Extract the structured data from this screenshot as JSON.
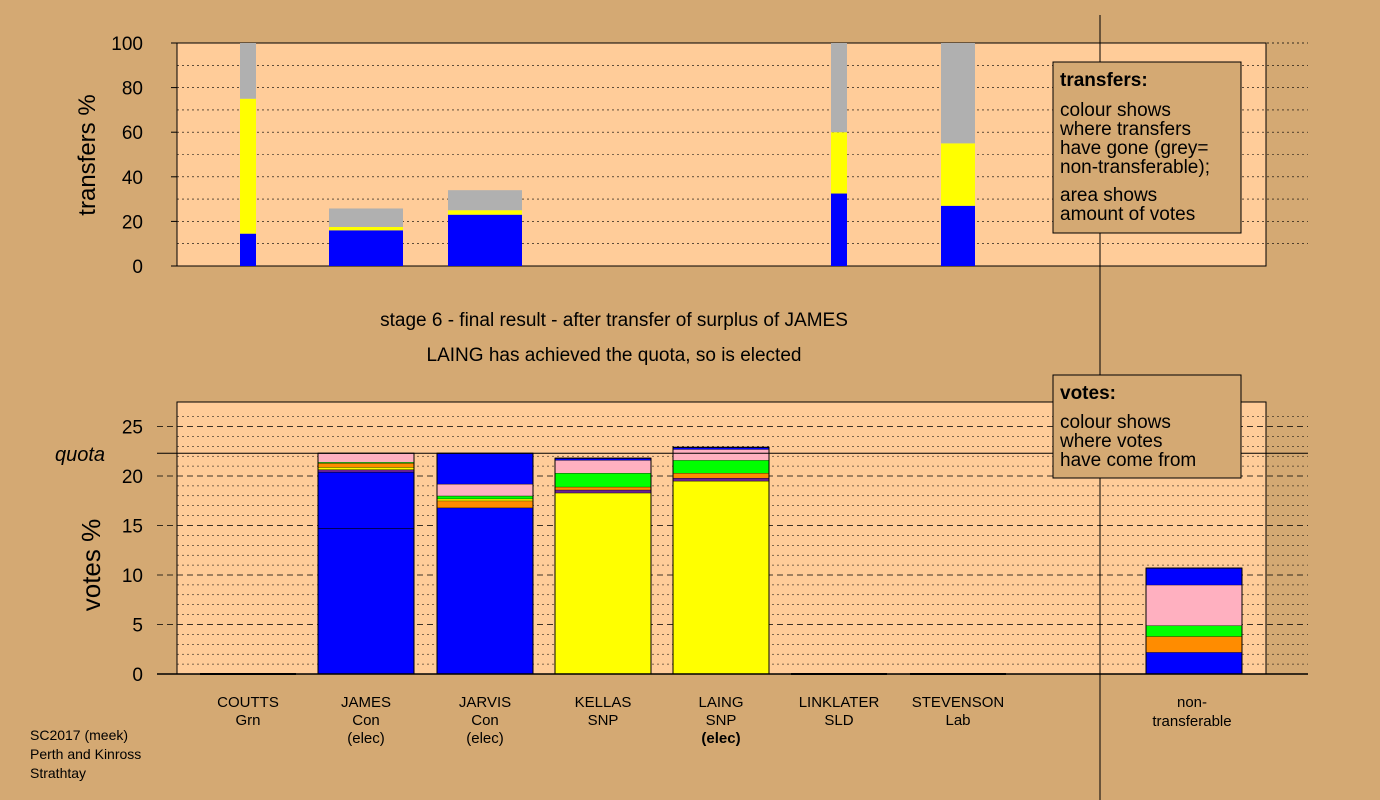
{
  "colors": {
    "page_bg": "#d4a973",
    "plot_bg": "#ffcc99",
    "grey": "#b0b0b0",
    "yellow": "#ffff00",
    "blue": "#0000ff",
    "orange": "#ff8c00",
    "green": "#00ff00",
    "pink": "#ffb0c0",
    "purple": "#6a2090"
  },
  "candidates": [
    {
      "name": "COUTTS",
      "party": "Grn",
      "status": ""
    },
    {
      "name": "JAMES",
      "party": "Con",
      "status": "(elec)"
    },
    {
      "name": "JARVIS",
      "party": "Con",
      "status": "(elec)"
    },
    {
      "name": "KELLAS",
      "party": "SNP",
      "status": ""
    },
    {
      "name": "LAING",
      "party": "SNP",
      "status": "(elec)"
    },
    {
      "name": "LINKLATER",
      "party": "SLD",
      "status": ""
    },
    {
      "name": "STEVENSON",
      "party": "Lab",
      "status": ""
    }
  ],
  "nontransferable_label": [
    "non-",
    "transferable"
  ],
  "stage_title": "stage 6 - final result - after transfer of surplus of JAMES",
  "stage_subtitle": "LAING has achieved the quota, so is elected",
  "footer": [
    "SC2017 (meek)",
    "Perth and Kinross",
    "Strathtay"
  ],
  "transfers_legend": {
    "title": "transfers:",
    "lines": [
      "colour shows",
      "where transfers",
      "have gone (grey=",
      "non-transferable);"
    ],
    "lines2": [
      "area shows",
      "amount of votes"
    ]
  },
  "votes_legend": {
    "title": "votes:",
    "lines": [
      "colour shows",
      "where votes",
      "have come from"
    ]
  },
  "quota_label": "quota",
  "chart_data": [
    {
      "type": "bar",
      "ylabel": "transfers %",
      "ylim": [
        0,
        100
      ],
      "yticks": [
        0,
        20,
        40,
        60,
        80,
        100
      ],
      "stacked": true,
      "bars": [
        {
          "position": "COUTTS",
          "width": "narrow",
          "segments": [
            {
              "color": "blue",
              "value": 14.5
            },
            {
              "color": "yellow",
              "value": 60.5
            },
            {
              "color": "grey",
              "value": 25
            }
          ]
        },
        {
          "position": "JAMES",
          "width": "wide",
          "segments": [
            {
              "color": "blue",
              "value": 16
            },
            {
              "color": "yellow",
              "value": 1.5
            },
            {
              "color": "grey",
              "value": 8.3
            }
          ]
        },
        {
          "position": "JARVIS",
          "width": "wide",
          "segments": [
            {
              "color": "blue",
              "value": 23
            },
            {
              "color": "yellow",
              "value": 2
            },
            {
              "color": "grey",
              "value": 9
            }
          ]
        },
        {
          "position": "LINKLATER",
          "width": "narrow",
          "segments": [
            {
              "color": "blue",
              "value": 32.5
            },
            {
              "color": "yellow",
              "value": 27.5
            },
            {
              "color": "grey",
              "value": 40
            }
          ]
        },
        {
          "position": "STEVENSON",
          "width": "medium",
          "segments": [
            {
              "color": "blue",
              "value": 27
            },
            {
              "color": "yellow",
              "value": 28
            },
            {
              "color": "grey",
              "value": 45
            }
          ]
        }
      ]
    },
    {
      "type": "bar",
      "ylabel": "votes %",
      "ylim": [
        0,
        27
      ],
      "yticks": [
        0,
        5,
        10,
        15,
        20,
        25
      ],
      "quota": 22.3,
      "stacked": true,
      "bars": [
        {
          "position": "COUTTS",
          "total": 0,
          "segments": []
        },
        {
          "position": "JAMES",
          "total": 22.3,
          "inner_line": 14.7,
          "segments": [
            {
              "color": "blue",
              "value": 20.4
            },
            {
              "color": "purple",
              "value": 0.25
            },
            {
              "color": "yellow",
              "value": 0.25
            },
            {
              "color": "orange",
              "value": 0.4
            },
            {
              "color": "green",
              "value": 0.1
            },
            {
              "color": "pink",
              "value": 0.9
            }
          ]
        },
        {
          "position": "JARVIS",
          "total": 22.3,
          "segments": [
            {
              "color": "blue",
              "value": 16.8
            },
            {
              "color": "orange",
              "value": 0.7
            },
            {
              "color": "yellow",
              "value": 0.2
            },
            {
              "color": "green",
              "value": 0.3
            },
            {
              "color": "pink",
              "value": 1.2
            },
            {
              "color": "blue",
              "value": 3.1
            }
          ]
        },
        {
          "position": "KELLAS",
          "total": 21.8,
          "segments": [
            {
              "color": "yellow",
              "value": 18.3
            },
            {
              "color": "purple",
              "value": 0.3
            },
            {
              "color": "orange",
              "value": 0.3
            },
            {
              "color": "green",
              "value": 1.4
            },
            {
              "color": "pink",
              "value": 1.3
            },
            {
              "color": "blue",
              "value": 0.2
            }
          ]
        },
        {
          "position": "LAING",
          "total": 22.9,
          "segments": [
            {
              "color": "yellow",
              "value": 19.5
            },
            {
              "color": "purple",
              "value": 0.3
            },
            {
              "color": "orange",
              "value": 0.5
            },
            {
              "color": "green",
              "value": 1.3
            },
            {
              "color": "pink",
              "value": 1.1
            },
            {
              "color": "blue",
              "value": 0.2
            }
          ]
        },
        {
          "position": "LINKLATER",
          "total": 0,
          "segments": []
        },
        {
          "position": "STEVENSON",
          "total": 0,
          "segments": []
        },
        {
          "position": "non-transferable",
          "total": 10.7,
          "segments": [
            {
              "color": "blue",
              "value": 2.2
            },
            {
              "color": "orange",
              "value": 1.6
            },
            {
              "color": "green",
              "value": 1.1
            },
            {
              "color": "pink",
              "value": 4.1
            },
            {
              "color": "blue",
              "value": 1.7
            }
          ]
        }
      ]
    }
  ]
}
